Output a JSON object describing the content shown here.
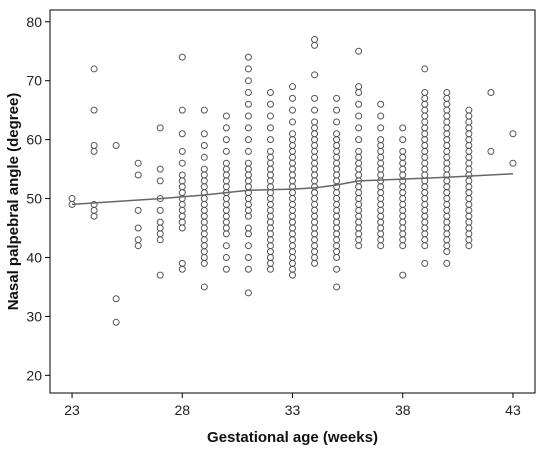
{
  "chart_data": {
    "type": "scatter",
    "xlabel": "Gestational age (weeks)",
    "ylabel": "Nasal palpebral angle (degree)",
    "xlim": [
      22,
      44
    ],
    "ylim": [
      17,
      82
    ],
    "xticks": [
      23,
      28,
      33,
      38,
      43
    ],
    "yticks": [
      20,
      30,
      40,
      50,
      60,
      70,
      80
    ],
    "grid": false,
    "legend": "none",
    "marker": "open-circle",
    "points": [
      [
        23,
        49
      ],
      [
        23,
        50
      ],
      [
        24,
        72
      ],
      [
        24,
        65
      ],
      [
        24,
        59
      ],
      [
        24,
        58
      ],
      [
        24,
        49
      ],
      [
        24,
        48
      ],
      [
        24,
        47
      ],
      [
        25,
        59
      ],
      [
        25,
        33
      ],
      [
        25,
        29
      ],
      [
        26,
        56
      ],
      [
        26,
        54
      ],
      [
        26,
        48
      ],
      [
        26,
        45
      ],
      [
        26,
        43
      ],
      [
        26,
        42
      ],
      [
        27,
        62
      ],
      [
        27,
        55
      ],
      [
        27,
        53
      ],
      [
        27,
        50
      ],
      [
        27,
        48
      ],
      [
        27,
        46
      ],
      [
        27,
        45
      ],
      [
        27,
        44
      ],
      [
        27,
        43
      ],
      [
        27,
        37
      ],
      [
        28,
        74
      ],
      [
        28,
        65
      ],
      [
        28,
        61
      ],
      [
        28,
        58
      ],
      [
        28,
        56
      ],
      [
        28,
        54
      ],
      [
        28,
        53
      ],
      [
        28,
        52
      ],
      [
        28,
        51
      ],
      [
        28,
        50
      ],
      [
        28,
        49
      ],
      [
        28,
        48
      ],
      [
        28,
        47
      ],
      [
        28,
        46
      ],
      [
        28,
        45
      ],
      [
        28,
        39
      ],
      [
        28,
        38
      ],
      [
        29,
        65
      ],
      [
        29,
        61
      ],
      [
        29,
        59
      ],
      [
        29,
        57
      ],
      [
        29,
        55
      ],
      [
        29,
        54
      ],
      [
        29,
        53
      ],
      [
        29,
        52
      ],
      [
        29,
        51
      ],
      [
        29,
        50
      ],
      [
        29,
        49
      ],
      [
        29,
        48
      ],
      [
        29,
        47
      ],
      [
        29,
        46
      ],
      [
        29,
        45
      ],
      [
        29,
        44
      ],
      [
        29,
        43
      ],
      [
        29,
        42
      ],
      [
        29,
        41
      ],
      [
        29,
        40
      ],
      [
        29,
        39
      ],
      [
        29,
        35
      ],
      [
        30,
        64
      ],
      [
        30,
        62
      ],
      [
        30,
        60
      ],
      [
        30,
        58
      ],
      [
        30,
        56
      ],
      [
        30,
        55
      ],
      [
        30,
        54
      ],
      [
        30,
        53
      ],
      [
        30,
        52
      ],
      [
        30,
        51
      ],
      [
        30,
        50
      ],
      [
        30,
        49
      ],
      [
        30,
        48
      ],
      [
        30,
        47
      ],
      [
        30,
        46
      ],
      [
        30,
        45
      ],
      [
        30,
        44
      ],
      [
        30,
        42
      ],
      [
        30,
        40
      ],
      [
        30,
        38
      ],
      [
        31,
        74
      ],
      [
        31,
        72
      ],
      [
        31,
        70
      ],
      [
        31,
        68
      ],
      [
        31,
        66
      ],
      [
        31,
        64
      ],
      [
        31,
        62
      ],
      [
        31,
        60
      ],
      [
        31,
        58
      ],
      [
        31,
        56
      ],
      [
        31,
        55
      ],
      [
        31,
        54
      ],
      [
        31,
        53
      ],
      [
        31,
        52
      ],
      [
        31,
        51
      ],
      [
        31,
        50
      ],
      [
        31,
        49
      ],
      [
        31,
        48
      ],
      [
        31,
        47
      ],
      [
        31,
        45
      ],
      [
        31,
        44
      ],
      [
        31,
        42
      ],
      [
        31,
        40
      ],
      [
        31,
        38
      ],
      [
        31,
        34
      ],
      [
        32,
        68
      ],
      [
        32,
        66
      ],
      [
        32,
        64
      ],
      [
        32,
        62
      ],
      [
        32,
        60
      ],
      [
        32,
        58
      ],
      [
        32,
        57
      ],
      [
        32,
        56
      ],
      [
        32,
        55
      ],
      [
        32,
        54
      ],
      [
        32,
        53
      ],
      [
        32,
        52
      ],
      [
        32,
        51
      ],
      [
        32,
        50
      ],
      [
        32,
        49
      ],
      [
        32,
        48
      ],
      [
        32,
        47
      ],
      [
        32,
        46
      ],
      [
        32,
        45
      ],
      [
        32,
        44
      ],
      [
        32,
        43
      ],
      [
        32,
        42
      ],
      [
        32,
        41
      ],
      [
        32,
        40
      ],
      [
        32,
        39
      ],
      [
        32,
        38
      ],
      [
        33,
        69
      ],
      [
        33,
        67
      ],
      [
        33,
        65
      ],
      [
        33,
        63
      ],
      [
        33,
        61
      ],
      [
        33,
        60
      ],
      [
        33,
        59
      ],
      [
        33,
        58
      ],
      [
        33,
        57
      ],
      [
        33,
        56
      ],
      [
        33,
        55
      ],
      [
        33,
        54
      ],
      [
        33,
        53
      ],
      [
        33,
        52
      ],
      [
        33,
        51
      ],
      [
        33,
        50
      ],
      [
        33,
        49
      ],
      [
        33,
        48
      ],
      [
        33,
        47
      ],
      [
        33,
        46
      ],
      [
        33,
        45
      ],
      [
        33,
        44
      ],
      [
        33,
        43
      ],
      [
        33,
        42
      ],
      [
        33,
        41
      ],
      [
        33,
        40
      ],
      [
        33,
        39
      ],
      [
        33,
        38
      ],
      [
        33,
        37
      ],
      [
        34,
        77
      ],
      [
        34,
        76
      ],
      [
        34,
        71
      ],
      [
        34,
        67
      ],
      [
        34,
        65
      ],
      [
        34,
        63
      ],
      [
        34,
        62
      ],
      [
        34,
        61
      ],
      [
        34,
        60
      ],
      [
        34,
        59
      ],
      [
        34,
        58
      ],
      [
        34,
        57
      ],
      [
        34,
        56
      ],
      [
        34,
        55
      ],
      [
        34,
        54
      ],
      [
        34,
        53
      ],
      [
        34,
        52
      ],
      [
        34,
        51
      ],
      [
        34,
        50
      ],
      [
        34,
        49
      ],
      [
        34,
        48
      ],
      [
        34,
        47
      ],
      [
        34,
        46
      ],
      [
        34,
        45
      ],
      [
        34,
        44
      ],
      [
        34,
        43
      ],
      [
        34,
        42
      ],
      [
        34,
        41
      ],
      [
        34,
        40
      ],
      [
        34,
        39
      ],
      [
        35,
        67
      ],
      [
        35,
        65
      ],
      [
        35,
        63
      ],
      [
        35,
        61
      ],
      [
        35,
        60
      ],
      [
        35,
        59
      ],
      [
        35,
        58
      ],
      [
        35,
        57
      ],
      [
        35,
        56
      ],
      [
        35,
        55
      ],
      [
        35,
        54
      ],
      [
        35,
        53
      ],
      [
        35,
        52
      ],
      [
        35,
        51
      ],
      [
        35,
        50
      ],
      [
        35,
        49
      ],
      [
        35,
        48
      ],
      [
        35,
        47
      ],
      [
        35,
        46
      ],
      [
        35,
        45
      ],
      [
        35,
        44
      ],
      [
        35,
        43
      ],
      [
        35,
        42
      ],
      [
        35,
        41
      ],
      [
        35,
        40
      ],
      [
        35,
        38
      ],
      [
        35,
        35
      ],
      [
        36,
        75
      ],
      [
        36,
        69
      ],
      [
        36,
        68
      ],
      [
        36,
        66
      ],
      [
        36,
        64
      ],
      [
        36,
        62
      ],
      [
        36,
        60
      ],
      [
        36,
        58
      ],
      [
        36,
        57
      ],
      [
        36,
        56
      ],
      [
        36,
        55
      ],
      [
        36,
        54
      ],
      [
        36,
        53
      ],
      [
        36,
        52
      ],
      [
        36,
        51
      ],
      [
        36,
        50
      ],
      [
        36,
        49
      ],
      [
        36,
        48
      ],
      [
        36,
        47
      ],
      [
        36,
        46
      ],
      [
        36,
        45
      ],
      [
        36,
        44
      ],
      [
        36,
        43
      ],
      [
        36,
        42
      ],
      [
        37,
        66
      ],
      [
        37,
        64
      ],
      [
        37,
        62
      ],
      [
        37,
        60
      ],
      [
        37,
        59
      ],
      [
        37,
        58
      ],
      [
        37,
        57
      ],
      [
        37,
        56
      ],
      [
        37,
        55
      ],
      [
        37,
        54
      ],
      [
        37,
        53
      ],
      [
        37,
        52
      ],
      [
        37,
        51
      ],
      [
        37,
        50
      ],
      [
        37,
        49
      ],
      [
        37,
        48
      ],
      [
        37,
        47
      ],
      [
        37,
        46
      ],
      [
        37,
        45
      ],
      [
        37,
        44
      ],
      [
        37,
        43
      ],
      [
        37,
        42
      ],
      [
        38,
        62
      ],
      [
        38,
        60
      ],
      [
        38,
        58
      ],
      [
        38,
        57
      ],
      [
        38,
        56
      ],
      [
        38,
        55
      ],
      [
        38,
        54
      ],
      [
        38,
        53
      ],
      [
        38,
        52
      ],
      [
        38,
        51
      ],
      [
        38,
        50
      ],
      [
        38,
        49
      ],
      [
        38,
        48
      ],
      [
        38,
        47
      ],
      [
        38,
        46
      ],
      [
        38,
        45
      ],
      [
        38,
        44
      ],
      [
        38,
        43
      ],
      [
        38,
        42
      ],
      [
        38,
        37
      ],
      [
        39,
        72
      ],
      [
        39,
        68
      ],
      [
        39,
        67
      ],
      [
        39,
        66
      ],
      [
        39,
        65
      ],
      [
        39,
        64
      ],
      [
        39,
        63
      ],
      [
        39,
        62
      ],
      [
        39,
        61
      ],
      [
        39,
        60
      ],
      [
        39,
        59
      ],
      [
        39,
        58
      ],
      [
        39,
        57
      ],
      [
        39,
        56
      ],
      [
        39,
        55
      ],
      [
        39,
        54
      ],
      [
        39,
        53
      ],
      [
        39,
        52
      ],
      [
        39,
        51
      ],
      [
        39,
        50
      ],
      [
        39,
        49
      ],
      [
        39,
        48
      ],
      [
        39,
        47
      ],
      [
        39,
        46
      ],
      [
        39,
        45
      ],
      [
        39,
        44
      ],
      [
        39,
        43
      ],
      [
        39,
        42
      ],
      [
        39,
        39
      ],
      [
        40,
        68
      ],
      [
        40,
        67
      ],
      [
        40,
        66
      ],
      [
        40,
        65
      ],
      [
        40,
        64
      ],
      [
        40,
        63
      ],
      [
        40,
        62
      ],
      [
        40,
        61
      ],
      [
        40,
        60
      ],
      [
        40,
        59
      ],
      [
        40,
        58
      ],
      [
        40,
        57
      ],
      [
        40,
        56
      ],
      [
        40,
        55
      ],
      [
        40,
        54
      ],
      [
        40,
        53
      ],
      [
        40,
        52
      ],
      [
        40,
        51
      ],
      [
        40,
        50
      ],
      [
        40,
        49
      ],
      [
        40,
        48
      ],
      [
        40,
        47
      ],
      [
        40,
        46
      ],
      [
        40,
        45
      ],
      [
        40,
        44
      ],
      [
        40,
        43
      ],
      [
        40,
        42
      ],
      [
        40,
        41
      ],
      [
        40,
        39
      ],
      [
        41,
        65
      ],
      [
        41,
        64
      ],
      [
        41,
        63
      ],
      [
        41,
        62
      ],
      [
        41,
        61
      ],
      [
        41,
        60
      ],
      [
        41,
        59
      ],
      [
        41,
        58
      ],
      [
        41,
        57
      ],
      [
        41,
        56
      ],
      [
        41,
        55
      ],
      [
        41,
        54
      ],
      [
        41,
        53
      ],
      [
        41,
        52
      ],
      [
        41,
        51
      ],
      [
        41,
        50
      ],
      [
        41,
        49
      ],
      [
        41,
        48
      ],
      [
        41,
        47
      ],
      [
        41,
        46
      ],
      [
        41,
        45
      ],
      [
        41,
        44
      ],
      [
        41,
        43
      ],
      [
        41,
        42
      ],
      [
        42,
        68
      ],
      [
        42,
        58
      ],
      [
        43,
        61
      ],
      [
        43,
        56
      ]
    ],
    "fit_line": {
      "x": [
        23,
        25,
        27,
        29,
        31,
        33,
        34,
        35,
        36,
        38,
        40,
        43
      ],
      "y": [
        49.0,
        49.5,
        50.0,
        50.6,
        51.4,
        51.6,
        51.8,
        52.3,
        53.0,
        53.3,
        53.6,
        54.2
      ]
    }
  }
}
